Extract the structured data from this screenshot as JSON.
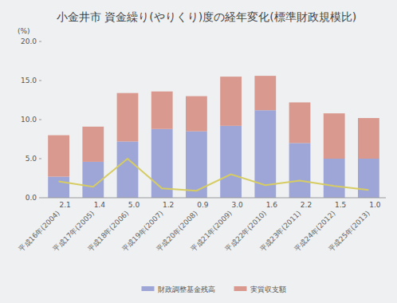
{
  "chart_data": {
    "type": "bar",
    "title": "小金井市 資金繰り(やりくり)度の経年変化(標準財政規模比)",
    "y_label": "(%)",
    "categories": [
      "平成16年(2004)",
      "平成17年(2005)",
      "平成18年(2006)",
      "平成19年(2007)",
      "平成20年(2008)",
      "平成21年(2009)",
      "平成22年(2010)",
      "平成23年(2011)",
      "平成24年(2012)",
      "平成25年(2013)"
    ],
    "stacked": true,
    "grid": false,
    "legend": "bottom",
    "ylim": [
      0,
      20
    ],
    "yticks": [
      {
        "value": 0,
        "label": "0.0"
      },
      {
        "value": 5,
        "label": "5.0"
      },
      {
        "value": 10,
        "label": "10.0"
      },
      {
        "value": 15,
        "label": "15.0"
      },
      {
        "value": 20,
        "label": "20.0"
      }
    ],
    "series": [
      {
        "name": "財政調整基金残高",
        "type": "bar",
        "color": "#9ea6d8",
        "values": [
          2.7,
          4.6,
          7.2,
          8.8,
          8.5,
          9.2,
          11.2,
          7.0,
          5.0,
          5.0
        ]
      },
      {
        "name": "実質収支額",
        "type": "bar",
        "color": "#d9998f",
        "values": [
          5.3,
          4.5,
          6.2,
          4.8,
          4.5,
          6.3,
          4.4,
          5.2,
          5.8,
          5.2
        ]
      },
      {
        "type": "line",
        "color": "#d6cc62",
        "marker": "none",
        "data_labels": true,
        "values": [
          2.1,
          1.4,
          5.0,
          1.2,
          0.9,
          3.0,
          1.6,
          2.2,
          1.5,
          1.0
        ],
        "value_labels": [
          "2.1",
          "1.4",
          "5.0",
          "1.2",
          "0.9",
          "3.0",
          "1.6",
          "2.2",
          "1.5",
          "1.0"
        ]
      }
    ]
  }
}
